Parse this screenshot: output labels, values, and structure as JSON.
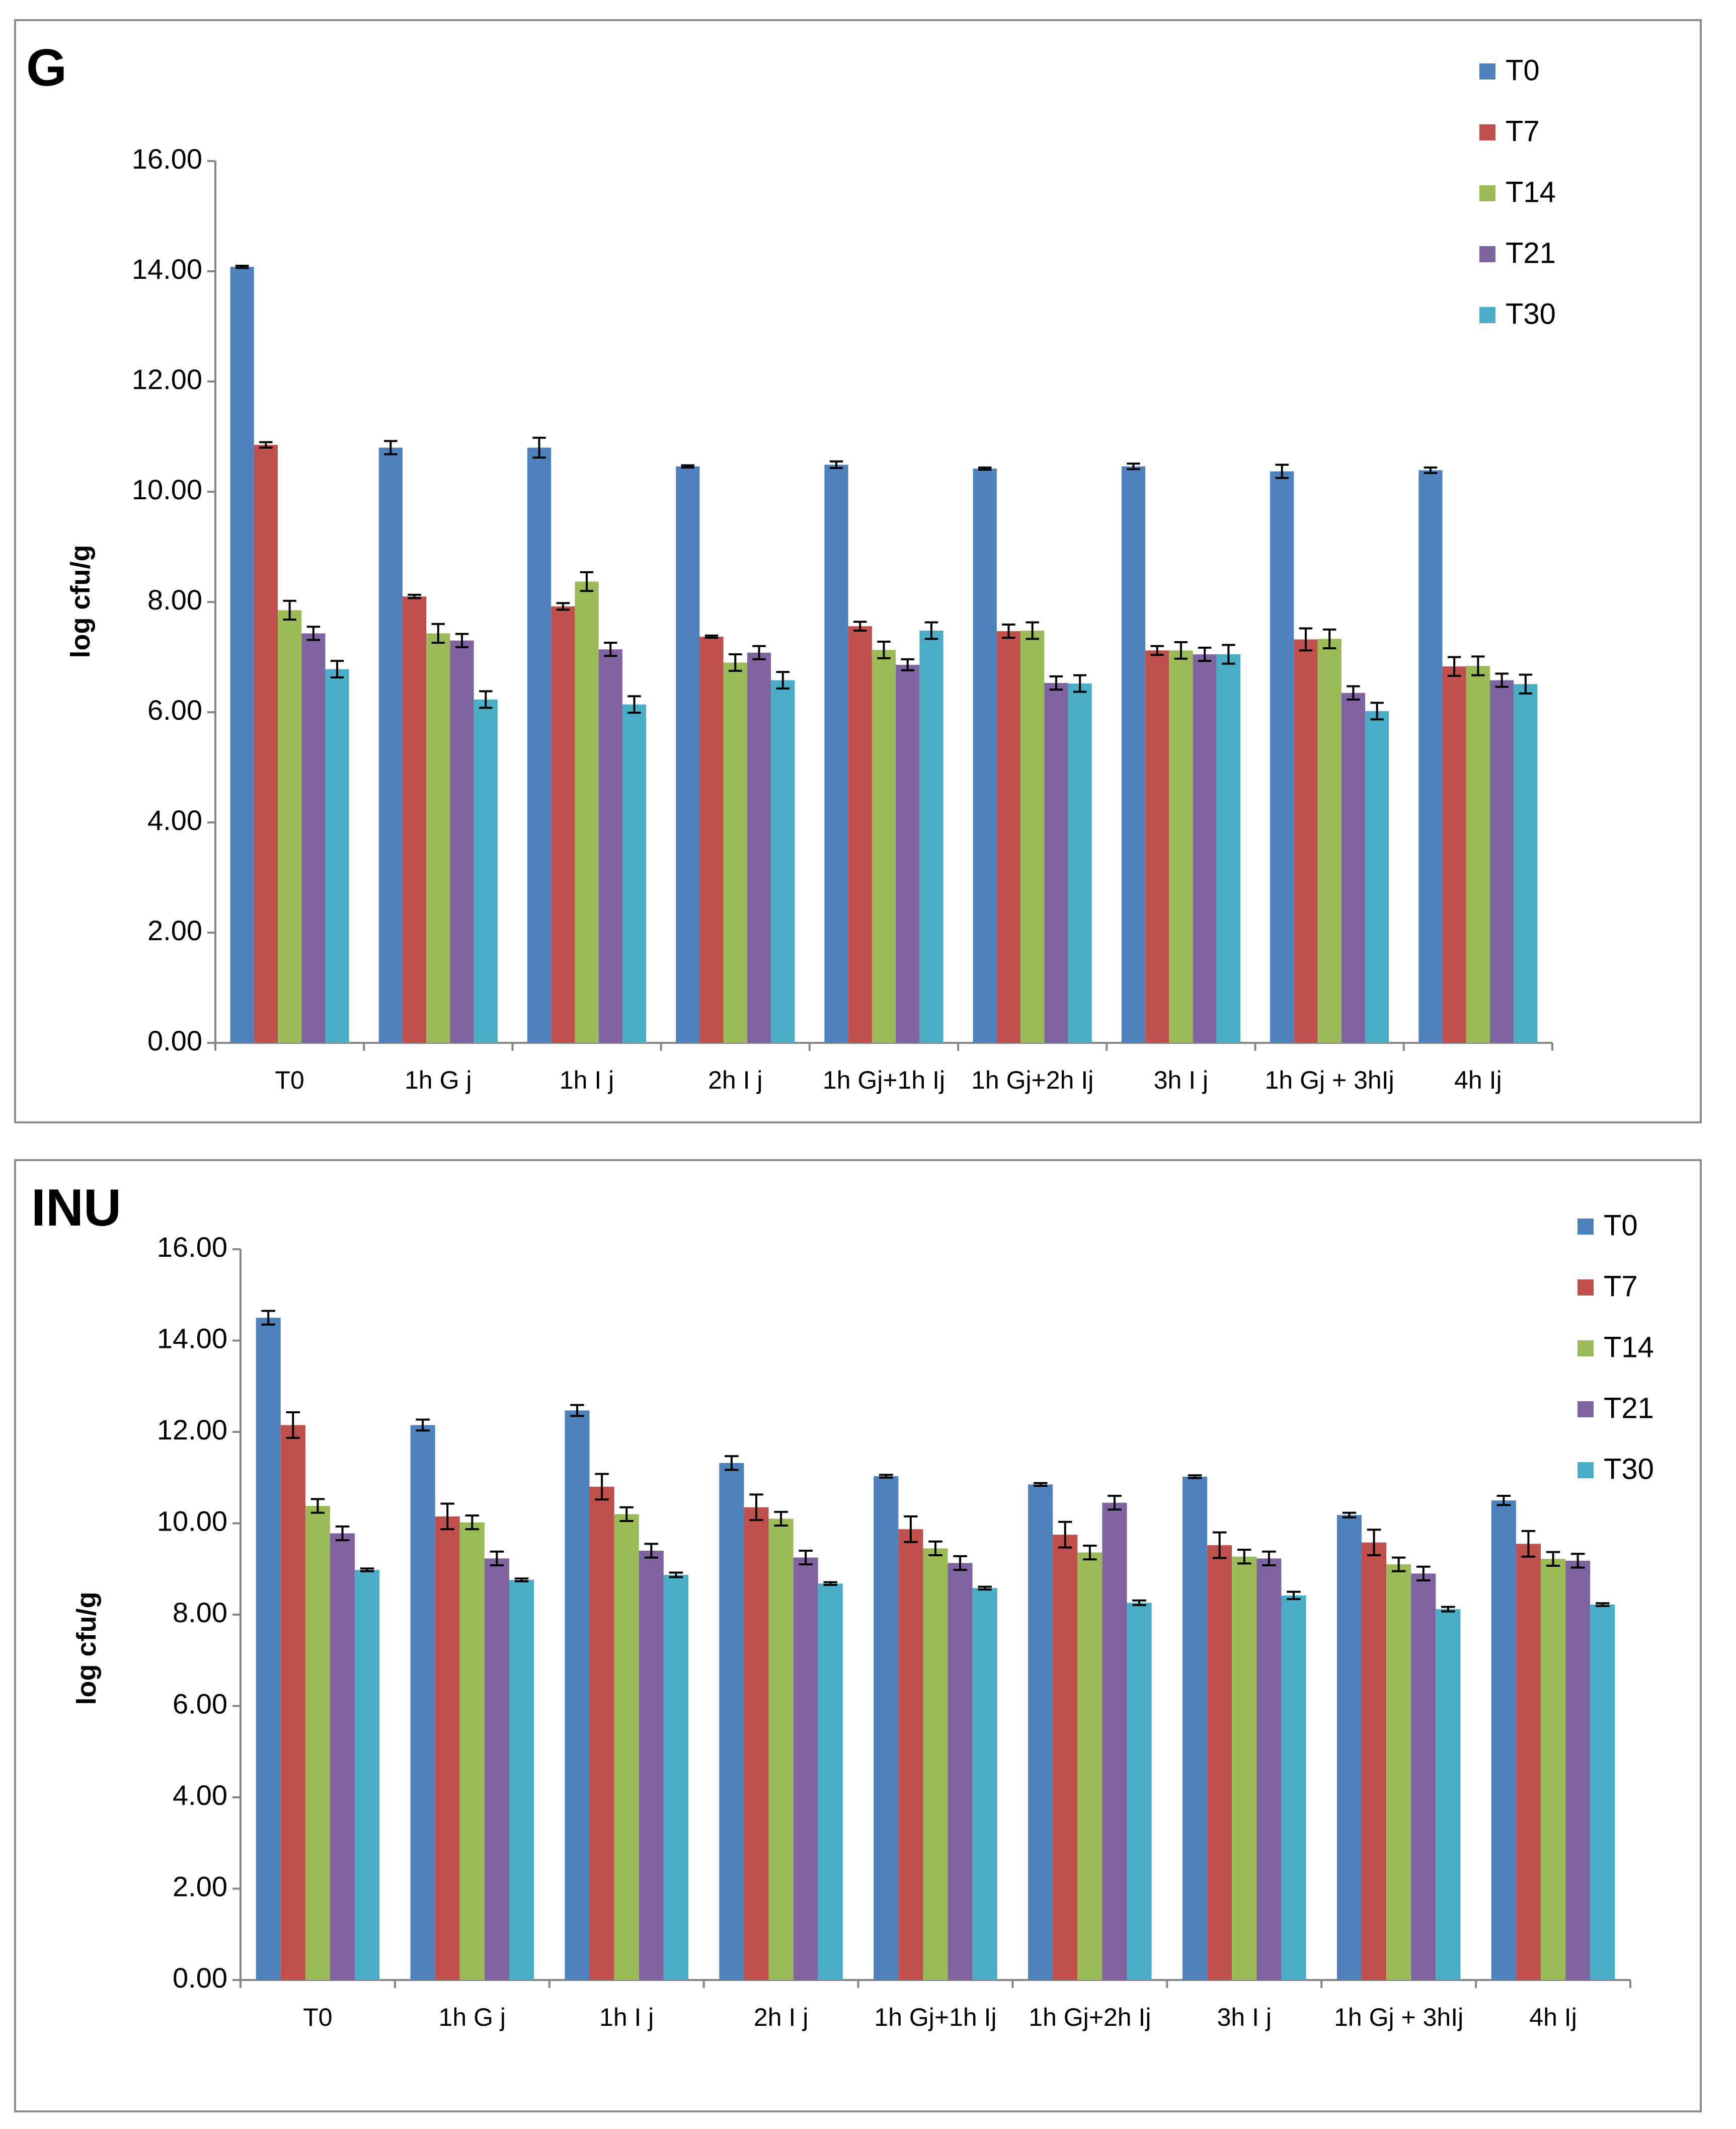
{
  "series_colors": {
    "T0": "#4f81bd",
    "T7": "#c0504d",
    "T14": "#9bbb59",
    "T21": "#8064a2",
    "T30": "#4bacc6"
  },
  "chart_data": [
    {
      "type": "bar",
      "panel_label": "G",
      "ylabel": "log cfu/g",
      "xlabel": "",
      "ylim": [
        0,
        16
      ],
      "ytick_labels": [
        "0.00",
        "2.00",
        "4.00",
        "6.00",
        "8.00",
        "10.00",
        "12.00",
        "14.00",
        "16.00"
      ],
      "categories": [
        "T0",
        "1h G j",
        "1h I j",
        "2h I j",
        "1h Gj+1h Ij",
        "1h Gj+2h Ij",
        "3h I j",
        "1h Gj + 3hIj",
        "4h Ij"
      ],
      "legend": [
        "T0",
        "T7",
        "T14",
        "T21",
        "T30"
      ],
      "legend_position": "top-right",
      "series": [
        {
          "name": "T0",
          "values": [
            14.08,
            10.8,
            10.8,
            10.46,
            10.49,
            10.42,
            10.46,
            10.37,
            10.39
          ],
          "errors": [
            0.02,
            0.12,
            0.18,
            0.02,
            0.06,
            0.02,
            0.05,
            0.12,
            0.05
          ]
        },
        {
          "name": "T7",
          "values": [
            10.85,
            8.1,
            7.92,
            7.37,
            7.56,
            7.47,
            7.12,
            7.32,
            6.83
          ],
          "errors": [
            0.05,
            0.03,
            0.06,
            0.02,
            0.08,
            0.12,
            0.08,
            0.2,
            0.17
          ]
        },
        {
          "name": "T14",
          "values": [
            7.85,
            7.43,
            8.37,
            6.9,
            7.13,
            7.48,
            7.12,
            7.33,
            6.84
          ],
          "errors": [
            0.17,
            0.17,
            0.17,
            0.15,
            0.15,
            0.15,
            0.15,
            0.17,
            0.17
          ]
        },
        {
          "name": "T21",
          "values": [
            7.43,
            7.3,
            7.14,
            7.08,
            6.86,
            6.53,
            7.05,
            6.35,
            6.58
          ],
          "errors": [
            0.12,
            0.12,
            0.12,
            0.12,
            0.1,
            0.12,
            0.12,
            0.12,
            0.12
          ]
        },
        {
          "name": "T30",
          "values": [
            6.78,
            6.23,
            6.14,
            6.58,
            7.48,
            6.52,
            7.05,
            6.02,
            6.51
          ],
          "errors": [
            0.15,
            0.15,
            0.15,
            0.15,
            0.15,
            0.15,
            0.17,
            0.15,
            0.17
          ]
        }
      ]
    },
    {
      "type": "bar",
      "panel_label": "INU",
      "ylabel": "log cfu/g",
      "xlabel": "",
      "ylim": [
        0,
        16
      ],
      "ytick_labels": [
        "0.00",
        "2.00",
        "4.00",
        "6.00",
        "8.00",
        "10.00",
        "12.00",
        "14.00",
        "16.00"
      ],
      "categories": [
        "T0",
        "1h G j",
        "1h I j",
        "2h I j",
        "1h Gj+1h Ij",
        "1h Gj+2h Ij",
        "3h I j",
        "1h Gj + 3hIj",
        "4h Ij"
      ],
      "legend": [
        "T0",
        "T7",
        "T14",
        "T21",
        "T30"
      ],
      "legend_position": "top-right",
      "series": [
        {
          "name": "T0",
          "values": [
            14.5,
            12.15,
            12.47,
            11.32,
            11.03,
            10.85,
            11.02,
            10.18,
            10.5
          ],
          "errors": [
            0.15,
            0.12,
            0.12,
            0.15,
            0.03,
            0.03,
            0.03,
            0.05,
            0.1
          ]
        },
        {
          "name": "T7",
          "values": [
            12.15,
            10.15,
            10.8,
            10.35,
            9.87,
            9.75,
            9.52,
            9.58,
            9.55
          ],
          "errors": [
            0.28,
            0.28,
            0.28,
            0.28,
            0.28,
            0.28,
            0.28,
            0.28,
            0.28
          ]
        },
        {
          "name": "T14",
          "values": [
            10.38,
            10.02,
            10.2,
            10.1,
            9.45,
            9.36,
            9.27,
            9.1,
            9.22
          ],
          "errors": [
            0.15,
            0.15,
            0.15,
            0.15,
            0.15,
            0.15,
            0.15,
            0.15,
            0.15
          ]
        },
        {
          "name": "T21",
          "values": [
            9.78,
            9.23,
            9.4,
            9.25,
            9.13,
            10.45,
            9.23,
            8.9,
            9.18
          ],
          "errors": [
            0.15,
            0.15,
            0.15,
            0.15,
            0.15,
            0.15,
            0.15,
            0.15,
            0.15
          ]
        },
        {
          "name": "T30",
          "values": [
            8.98,
            8.76,
            8.87,
            8.68,
            8.58,
            8.26,
            8.42,
            8.12,
            8.22
          ],
          "errors": [
            0.03,
            0.03,
            0.05,
            0.03,
            0.03,
            0.05,
            0.08,
            0.05,
            0.03
          ]
        }
      ]
    }
  ]
}
